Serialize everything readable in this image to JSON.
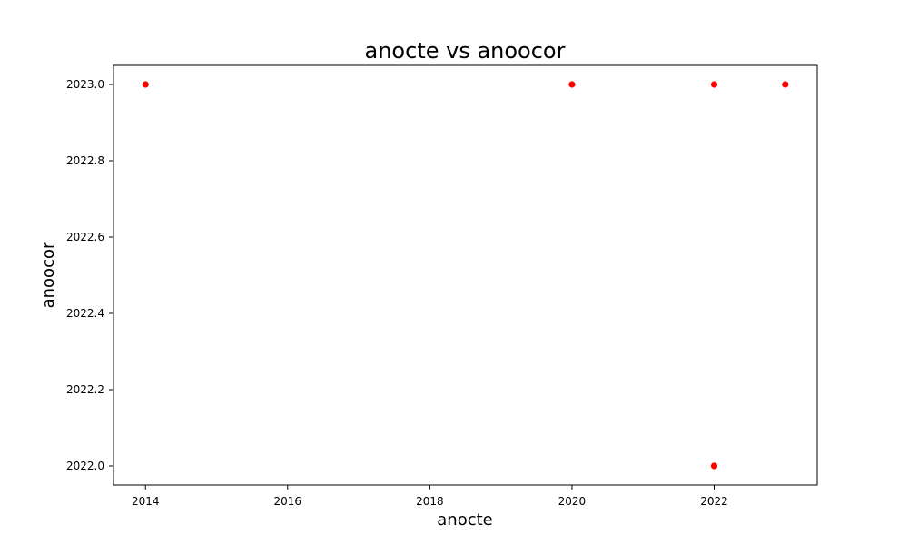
{
  "chart_data": {
    "type": "scatter",
    "title": "anocte vs anoocor",
    "xlabel": "anocte",
    "ylabel": "anoocor",
    "xlim": [
      2013.55,
      2023.45
    ],
    "ylim": [
      2021.95,
      2023.05
    ],
    "xticks": [
      2014,
      2016,
      2018,
      2020,
      2022
    ],
    "xtick_labels": [
      "2014",
      "2016",
      "2018",
      "2020",
      "2022"
    ],
    "yticks": [
      2022.0,
      2022.2,
      2022.4,
      2022.6,
      2022.8,
      2023.0
    ],
    "ytick_labels": [
      "2022.0",
      "2022.2",
      "2022.4",
      "2022.6",
      "2022.8",
      "2023.0"
    ],
    "grid": false,
    "legend": "none",
    "marker_color": "#ff0000",
    "points": [
      {
        "x": 2014,
        "y": 2023
      },
      {
        "x": 2020,
        "y": 2023
      },
      {
        "x": 2022,
        "y": 2023
      },
      {
        "x": 2023,
        "y": 2023
      },
      {
        "x": 2022,
        "y": 2022
      }
    ]
  }
}
